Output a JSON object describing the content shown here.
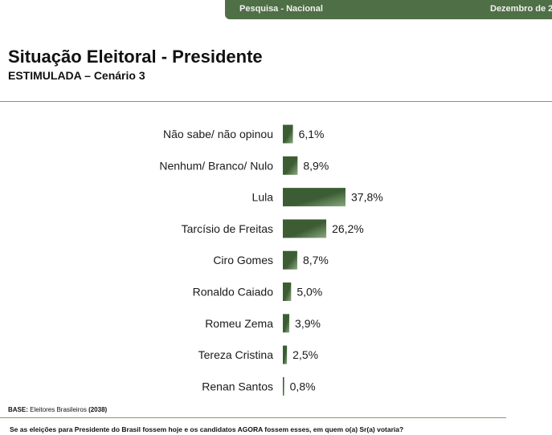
{
  "header": {
    "survey_label": "Pesquisa - Nacional",
    "date_label": "Dezembro de 2"
  },
  "title": "Situação Eleitoral - Presidente",
  "subtitle": "ESTIMULADA – Cenário 3",
  "footer": {
    "base_label": "BASE:",
    "base_text": "Eleitores Brasileiros",
    "base_count": "(2038)",
    "question": "Se as eleições para Presidente do Brasil fossem hoje e os candidatos AGORA fossem esses, em quem o(a) Sr(a) votaria?"
  },
  "colors": {
    "bar_dark": "#3c5d33",
    "bar_light": "#8aa880",
    "accent": "#4f6f46"
  },
  "chart_data": {
    "type": "bar",
    "orientation": "horizontal",
    "title": "Situação Eleitoral - Presidente",
    "categories": [
      "Não sabe/ não opinou",
      "Nenhum/ Branco/ Nulo",
      "Lula",
      "Tarcísio de Freitas",
      "Ciro Gomes",
      "Ronaldo Caiado",
      "Romeu Zema",
      "Tereza Cristina",
      "Renan Santos"
    ],
    "values": [
      6.1,
      8.9,
      37.8,
      26.2,
      8.7,
      5.0,
      3.9,
      2.5,
      0.8
    ],
    "labels": [
      "6,1%",
      "8,9%",
      "37,8%",
      "26,2%",
      "8,7%",
      "5,0%",
      "3,9%",
      "2,5%",
      "0,8%"
    ],
    "unit": "%",
    "xlim": [
      0,
      37.8
    ]
  }
}
